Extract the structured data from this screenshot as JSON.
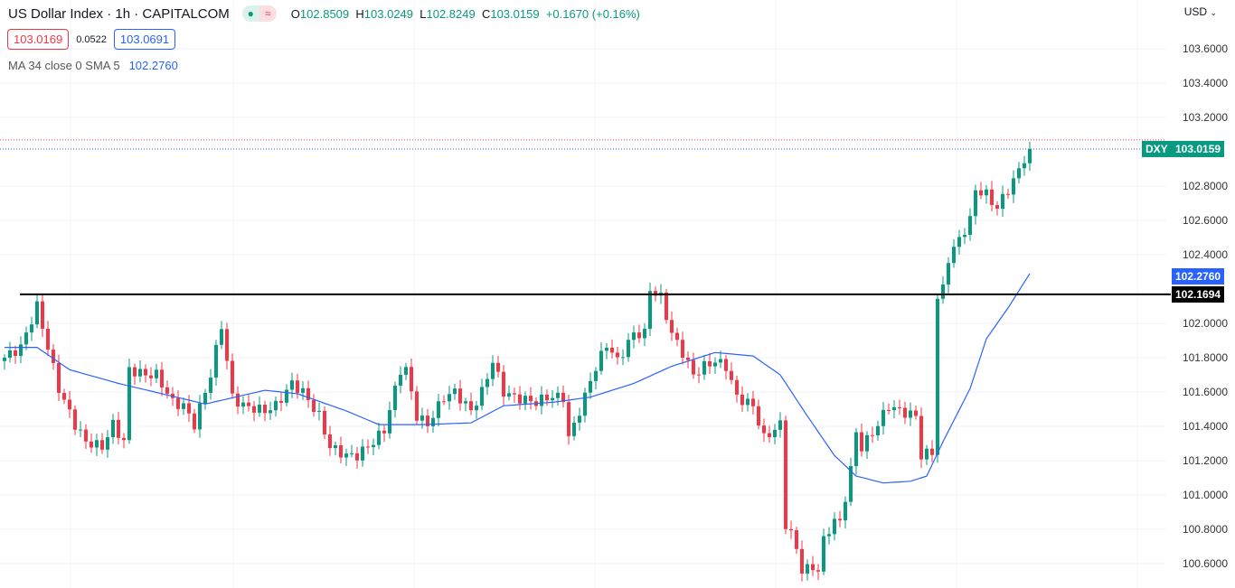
{
  "header": {
    "title": "US Dollar Index · 1h · CAPITALCOM",
    "open_label": "O",
    "open": "102.8509",
    "high_label": "H",
    "high": "103.0249",
    "low_label": "L",
    "low": "102.8249",
    "close_label": "C",
    "close": "103.0159",
    "change": "+0.1670 (+0.16%)",
    "market_icon": "dot-icon",
    "wave_icon": "≈"
  },
  "quote": {
    "bid": "103.0169",
    "spread": "0.0522",
    "ask": "103.0691"
  },
  "indicator": {
    "label": "MA 34 close 0 SMA 5",
    "value": "102.2760"
  },
  "axis": {
    "currency": "USD",
    "ticks": [
      "103.6000",
      "103.4000",
      "103.2000",
      "102.8000",
      "102.6000",
      "102.4000",
      "102.0000",
      "101.8000",
      "101.6000",
      "101.4000",
      "101.2000",
      "101.0000",
      "100.8000",
      "100.6000"
    ]
  },
  "tags": {
    "symbol": "DXY",
    "last": "103.0159",
    "ma": "102.2760",
    "line": "102.1694"
  },
  "colors": {
    "up": "#089981",
    "down": "#f23645",
    "ma": "#2962ff"
  },
  "chart_data": {
    "type": "candlestick",
    "ylim": [
      100.5,
      103.7
    ],
    "candles": 190,
    "close_keypoints": [
      [
        0,
        101.8
      ],
      [
        3,
        101.86
      ],
      [
        6,
        102.1
      ],
      [
        8,
        101.86
      ],
      [
        10,
        101.62
      ],
      [
        13,
        101.41
      ],
      [
        15,
        101.31
      ],
      [
        18,
        101.28
      ],
      [
        20,
        101.41
      ],
      [
        22,
        101.31
      ],
      [
        23,
        101.73
      ],
      [
        26,
        101.7
      ],
      [
        28,
        101.7
      ],
      [
        31,
        101.54
      ],
      [
        33,
        101.52
      ],
      [
        35,
        101.41
      ],
      [
        38,
        101.7
      ],
      [
        40,
        101.99
      ],
      [
        42,
        101.57
      ],
      [
        44,
        101.52
      ],
      [
        48,
        101.49
      ],
      [
        50,
        101.52
      ],
      [
        53,
        101.65
      ],
      [
        55,
        101.6
      ],
      [
        58,
        101.46
      ],
      [
        60,
        101.28
      ],
      [
        63,
        101.23
      ],
      [
        65,
        101.23
      ],
      [
        68,
        101.31
      ],
      [
        70,
        101.38
      ],
      [
        73,
        101.73
      ],
      [
        74,
        101.73
      ],
      [
        76,
        101.46
      ],
      [
        78,
        101.41
      ],
      [
        81,
        101.57
      ],
      [
        83,
        101.6
      ],
      [
        86,
        101.49
      ],
      [
        88,
        101.6
      ],
      [
        90,
        101.78
      ],
      [
        92,
        101.6
      ],
      [
        94,
        101.57
      ],
      [
        98,
        101.54
      ],
      [
        100,
        101.57
      ],
      [
        103,
        101.57
      ],
      [
        104,
        101.33
      ],
      [
        107,
        101.57
      ],
      [
        108,
        101.67
      ],
      [
        111,
        101.88
      ],
      [
        113,
        101.78
      ],
      [
        116,
        101.94
      ],
      [
        118,
        101.94
      ],
      [
        119,
        102.2
      ],
      [
        121,
        102.15
      ],
      [
        123,
        101.94
      ],
      [
        125,
        101.83
      ],
      [
        127,
        101.7
      ],
      [
        129,
        101.75
      ],
      [
        131,
        101.78
      ],
      [
        133,
        101.75
      ],
      [
        135,
        101.57
      ],
      [
        138,
        101.52
      ],
      [
        140,
        101.33
      ],
      [
        143,
        101.41
      ],
      [
        144,
        100.83
      ],
      [
        145,
        100.78
      ],
      [
        147,
        100.57
      ],
      [
        150,
        100.57
      ],
      [
        151,
        100.73
      ],
      [
        153,
        100.86
      ],
      [
        154,
        100.83
      ],
      [
        156,
        101.15
      ],
      [
        157,
        101.36
      ],
      [
        158,
        101.28
      ],
      [
        160,
        101.36
      ],
      [
        163,
        101.52
      ],
      [
        165,
        101.49
      ],
      [
        168,
        101.46
      ],
      [
        169,
        101.23
      ],
      [
        171,
        101.25
      ],
      [
        172,
        102.15
      ],
      [
        173,
        102.2
      ],
      [
        174,
        102.38
      ],
      [
        176,
        102.49
      ],
      [
        178,
        102.6
      ],
      [
        179,
        102.78
      ],
      [
        181,
        102.75
      ],
      [
        183,
        102.67
      ],
      [
        184,
        102.73
      ],
      [
        186,
        102.83
      ],
      [
        188,
        102.96
      ],
      [
        189,
        103.02
      ]
    ],
    "ma_keypoints": [
      [
        0,
        101.86
      ],
      [
        6,
        101.86
      ],
      [
        12,
        101.73
      ],
      [
        21,
        101.65
      ],
      [
        29,
        101.59
      ],
      [
        37,
        101.53
      ],
      [
        48,
        101.61
      ],
      [
        54,
        101.59
      ],
      [
        63,
        101.49
      ],
      [
        69,
        101.41
      ],
      [
        77,
        101.41
      ],
      [
        86,
        101.42
      ],
      [
        92,
        101.52
      ],
      [
        101,
        101.54
      ],
      [
        108,
        101.57
      ],
      [
        116,
        101.65
      ],
      [
        123,
        101.75
      ],
      [
        131,
        101.83
      ],
      [
        138,
        101.81
      ],
      [
        143,
        101.7
      ],
      [
        148,
        101.46
      ],
      [
        153,
        101.23
      ],
      [
        157,
        101.11
      ],
      [
        162,
        101.07
      ],
      [
        167,
        101.08
      ],
      [
        170,
        101.11
      ],
      [
        173,
        101.31
      ],
      [
        178,
        101.62
      ],
      [
        181,
        101.91
      ],
      [
        185,
        102.09
      ],
      [
        189,
        102.29
      ]
    ],
    "hline": 102.1694,
    "last_price": 103.0159,
    "ask": 103.0691
  }
}
